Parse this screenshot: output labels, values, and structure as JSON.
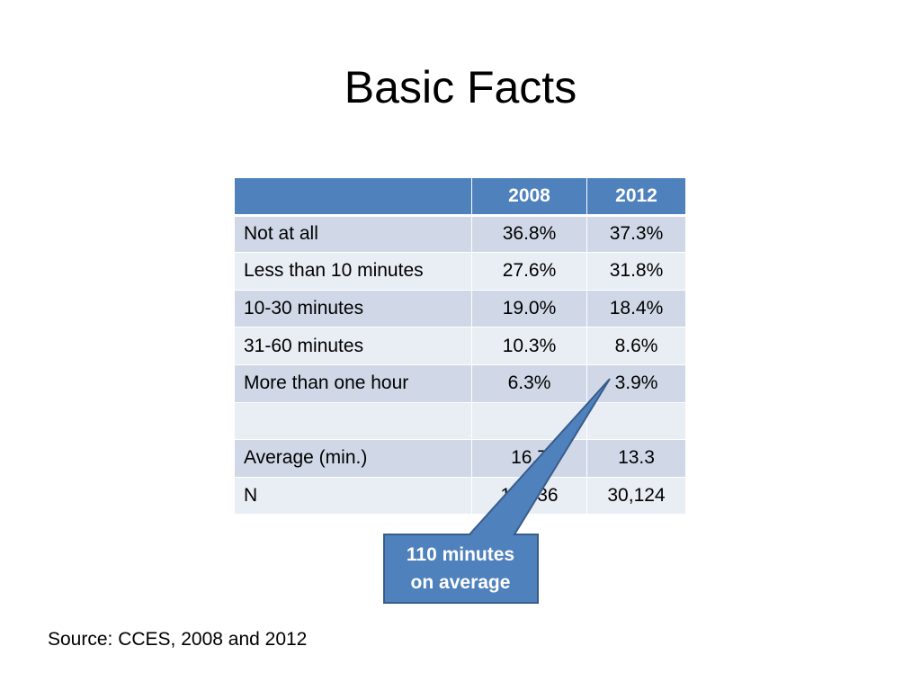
{
  "slide": {
    "title": "Basic Facts",
    "source": "Source:  CCES, 2008 and 2012"
  },
  "table": {
    "headers": [
      "",
      "2008",
      "2012"
    ],
    "rows": [
      {
        "label": "Not at all",
        "y2008": "36.8%",
        "y2012": "37.3%"
      },
      {
        "label": "Less than 10 minutes",
        "y2008": "27.6%",
        "y2012": "31.8%"
      },
      {
        "label": "10-30 minutes",
        "y2008": "19.0%",
        "y2012": "18.4%"
      },
      {
        "label": "31-60 minutes",
        "y2008": "10.3%",
        "y2012": "8.6%"
      },
      {
        "label": "More than one hour",
        "y2008": "6.3%",
        "y2012": "3.9%"
      },
      {
        "label": "",
        "y2008": "",
        "y2012": ""
      },
      {
        "label": "Average (min.)",
        "y2008": "16.7",
        "y2012": "13.3"
      },
      {
        "label": "N",
        "y2008": "10,336",
        "y2012": "30,124"
      }
    ]
  },
  "callout": {
    "line1": "110 minutes",
    "line2": "on average",
    "fill": "#4f81bd",
    "stroke": "#385d8a"
  },
  "colors": {
    "header": "#4f81bd",
    "row_odd": "#d0d8e8",
    "row_even": "#e9edf4"
  }
}
